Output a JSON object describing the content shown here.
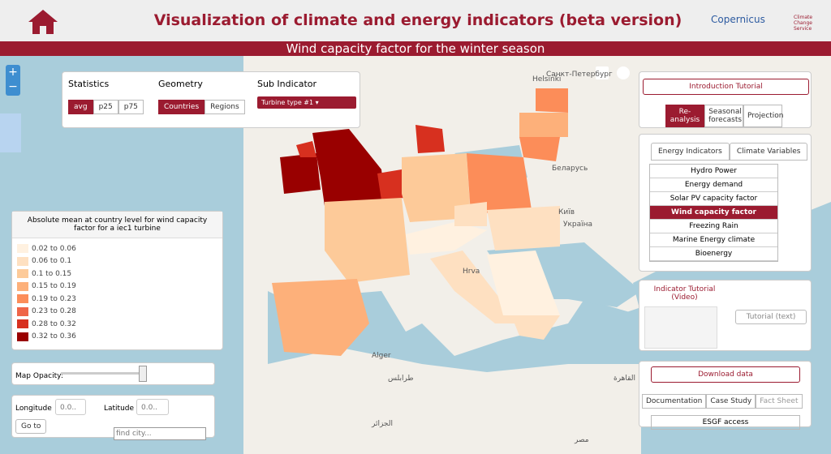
{
  "header": {
    "title": "Visualization of climate and energy indicators (beta version)",
    "logo_left": "Copernicus",
    "logo_right": "Climate Change Service",
    "subtitle": "Wind capacity factor for the winter season"
  },
  "controls": {
    "statistics": {
      "label": "Statistics",
      "options": [
        "avg",
        "p25",
        "p75"
      ]
    },
    "geometry": {
      "label": "Geometry",
      "options": [
        "Countries",
        "Regions"
      ]
    },
    "sub_indicator": {
      "label": "Sub Indicator",
      "value": "Turbine type #1"
    }
  },
  "legend": {
    "title": "Absolute mean at country level for wind capacity factor for a iec1 turbine",
    "items": [
      {
        "label": "0.02 to 0.06",
        "color": "#fff1e0"
      },
      {
        "label": "0.06 to 0.1",
        "color": "#fee0c1"
      },
      {
        "label": "0.1 to 0.15",
        "color": "#fdca99"
      },
      {
        "label": "0.15 to 0.19",
        "color": "#fdb07a"
      },
      {
        "label": "0.19 to 0.23",
        "color": "#fc8d59"
      },
      {
        "label": "0.23 to 0.28",
        "color": "#ef6548"
      },
      {
        "label": "0.28 to 0.32",
        "color": "#d7301f"
      },
      {
        "label": "0.32 to 0.36",
        "color": "#990000"
      }
    ]
  },
  "opacity": {
    "label": "Map Opacity:"
  },
  "coords": {
    "longitude": "Longitude",
    "lon_placeholder": "0.0..",
    "latitude": "Latitude",
    "lat_placeholder": "0.0..",
    "go": "Go to",
    "find": "find city..."
  },
  "map_labels": [
    "Helsinki",
    "Санкт-Петербург",
    "Беларусь",
    "Київ",
    "Україна",
    "Hrva",
    "Alger",
    "الجزائر",
    "مصر",
    "طرابلس",
    "القاهرة"
  ],
  "right": {
    "intro": "Introduction Tutorial",
    "sources": [
      "Re-analysis",
      "Seasonal forecasts",
      "Projection"
    ],
    "tabs": [
      "Energy Indicators",
      "Climate Variables"
    ],
    "indicators": [
      "Hydro Power",
      "Energy demand",
      "Solar PV capacity factor",
      "Wind capacity factor",
      "Freezing Rain",
      "Marine Energy climate",
      "Bioenergy"
    ],
    "video": "Indicator Tutorial (Video)",
    "text_tutorial": "Tutorial (text)",
    "download": "Download data",
    "docs": [
      "Documentation",
      "Case Study",
      "Fact Sheet"
    ],
    "esgf": "ESGF access"
  }
}
